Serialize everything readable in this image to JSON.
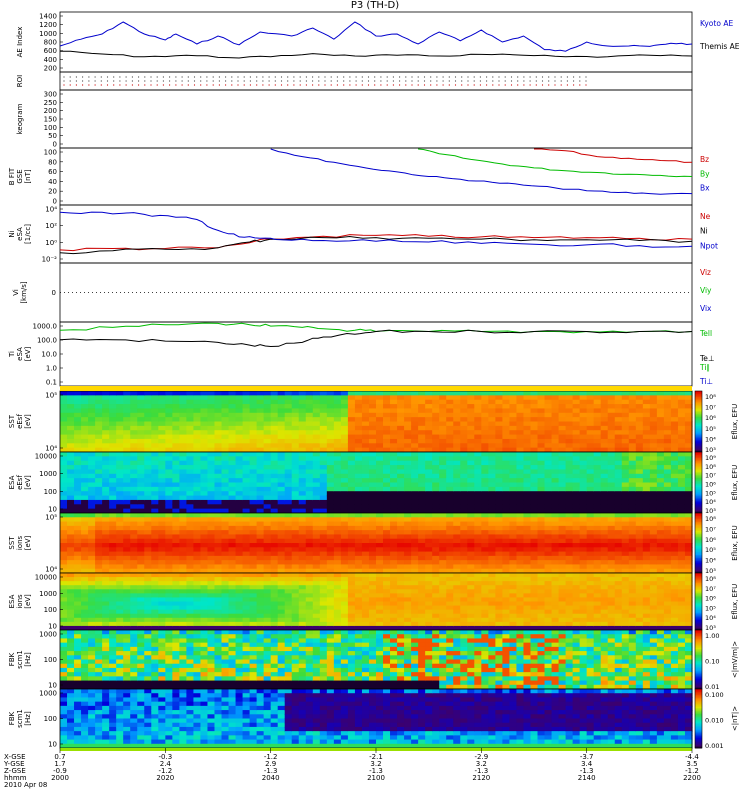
{
  "title": "P3 (TH-D)",
  "chart_data": {
    "panels": [
      {
        "id": "ae",
        "ylabel": [
          "AE Index"
        ],
        "type": "line",
        "ticks": [
          "1400",
          "1200",
          "1000",
          "800",
          "600",
          "400",
          "200"
        ],
        "series": [
          {
            "name": "Kyoto AE",
            "color": "#0000cc",
            "x": [
              0,
              4,
              8,
              12,
              16,
              20,
              22,
              26,
              30,
              34,
              38,
              44,
              48,
              52,
              56,
              60,
              64,
              68,
              72,
              76,
              80,
              84,
              88,
              92,
              96,
              100,
              104,
              108,
              112,
              116,
              120
            ],
            "values": [
              650,
              820,
              950,
              1250,
              950,
              800,
              950,
              700,
              900,
              680,
              1000,
              900,
              1100,
              820,
              1250,
              900,
              950,
              700,
              1000,
              780,
              1050,
              750,
              900,
              560,
              520,
              750,
              650,
              650,
              640,
              720,
              700
            ]
          },
          {
            "name": "Themis AE",
            "color": "#000000",
            "x": [
              0,
              8,
              16,
              24,
              32,
              40,
              48,
              56,
              64,
              72,
              80,
              88,
              96,
              104,
              112,
              120
            ],
            "values": [
              520,
              450,
              380,
              420,
              360,
              380,
              460,
              400,
              420,
              400,
              440,
              420,
              380,
              380,
              420,
              400
            ]
          }
        ],
        "ylim": [
          0,
          1500
        ]
      },
      {
        "id": "roi",
        "ylabel": [
          "ROI"
        ],
        "type": "dots",
        "ticks": []
      },
      {
        "id": "kp",
        "ylabel": [
          "keogram"
        ],
        "type": "empty",
        "ticks": [
          "300",
          "250",
          "200",
          "150",
          "100",
          "50",
          "0"
        ]
      },
      {
        "id": "bfit",
        "ylabel": [
          "B FIT",
          "GSE",
          "[nT]"
        ],
        "type": "line",
        "ticks": [
          "100",
          "80",
          "60",
          "40",
          "20",
          "0"
        ],
        "series": [
          {
            "name": "Bz",
            "color": "#cc0000",
            "x": [
              90,
              96,
              102,
              108,
              114,
              120
            ],
            "values": [
              100,
              95,
              85,
              82,
              78,
              75
            ]
          },
          {
            "name": "By",
            "color": "#00bb00",
            "x": [
              68,
              72,
              78,
              84,
              90,
              96,
              102,
              108,
              114,
              120
            ],
            "values": [
              100,
              90,
              80,
              72,
              65,
              60,
              57,
              54,
              52,
              50
            ]
          },
          {
            "name": "Bx",
            "color": "#0000cc",
            "x": [
              40,
              46,
              52,
              58,
              64,
              70,
              76,
              82,
              88,
              94,
              100,
              106,
              112,
              120
            ],
            "values": [
              100,
              85,
              75,
              65,
              58,
              50,
              45,
              40,
              35,
              30,
              25,
              22,
              20,
              20
            ]
          }
        ],
        "ylim": [
          0,
          100
        ]
      },
      {
        "id": "ni",
        "ylabel": [
          "Ni",
          "eSA",
          "[1/cc]"
        ],
        "type": "line",
        "ticks": [
          "10⁴",
          "10²",
          "10⁰",
          "10⁻²"
        ],
        "series": [
          {
            "name": "Ne",
            "color": "#cc0000",
            "x": [
              0,
              10,
              20,
              30,
              36,
              40,
              50,
              60,
              70,
              80,
              90,
              100,
              110,
              120
            ],
            "values": [
              -1.2,
              -1.0,
              -1.0,
              -0.9,
              -0.2,
              0.3,
              0.7,
              0.8,
              0.7,
              0.6,
              0.5,
              0.5,
              0.4,
              0.3
            ]
          },
          {
            "name": "Ni",
            "color": "#000000",
            "x": [
              0,
              10,
              20,
              30,
              36,
              40,
              50,
              60,
              70,
              80,
              90,
              100,
              110,
              120
            ],
            "values": [
              -1.6,
              -1.3,
              -1.1,
              -0.9,
              -0.1,
              0.3,
              0.5,
              0.5,
              0.4,
              0.3,
              0.2,
              0.2,
              0.1,
              0.0
            ]
          },
          {
            "name": "Npot",
            "color": "#0000cc",
            "x": [
              0,
              8,
              16,
              22,
              26,
              30,
              34,
              38,
              42,
              50,
              60,
              70,
              80,
              90,
              100,
              110,
              120
            ],
            "values": [
              4.0,
              4.0,
              3.7,
              3.3,
              3.0,
              1.5,
              0.6,
              0.4,
              0.2,
              0.1,
              0.0,
              -0.1,
              -0.3,
              -0.4,
              -0.5,
              -0.6,
              -0.7
            ]
          }
        ],
        "ylim": [
          -3,
          5
        ]
      },
      {
        "id": "vi",
        "ylabel": [
          "Vi",
          "[km/s]"
        ],
        "type": "empty",
        "ticks": [],
        "legend": [
          "Viz",
          "Viy",
          "Vix"
        ]
      },
      {
        "id": "ti",
        "ylabel": [
          "Ti",
          "eSA",
          "[eV]"
        ],
        "type": "line",
        "ticks": [
          "1000.0",
          "100.0",
          "10.0",
          "1.0",
          "0.1"
        ],
        "series": [
          {
            "name": "Tell",
            "color": "#00bb00",
            "x": [
              0,
              10,
              20,
              30,
              36,
              40,
              46,
              50,
              56,
              60,
              70,
              80,
              90,
              100,
              110,
              120
            ],
            "values": [
              3.1,
              3.3,
              3.5,
              3.6,
              3.5,
              3.4,
              3.3,
              3.2,
              3.1,
              3.0,
              3.0,
              3.0,
              3.0,
              3.0,
              3.0,
              3.0
            ]
          },
          {
            "name": "Te⊥",
            "color": "#000000",
            "x": [
              0,
              10,
              20,
              30,
              36,
              40,
              46,
              50,
              56,
              60,
              70,
              80,
              90,
              100,
              110,
              120
            ],
            "values": [
              2.4,
              2.4,
              2.3,
              2.2,
              2.0,
              1.9,
              2.2,
              2.6,
              2.8,
              3.0,
              3.0,
              3.0,
              3.0,
              3.0,
              3.0,
              3.0
            ]
          }
        ],
        "legend": [
          "Tell",
          "Te⊥",
          "Ti∥",
          "Ti⊥"
        ],
        "ylim": [
          -1,
          3.7
        ]
      },
      {
        "id": "sst_e",
        "ylabel": [
          "SST",
          "eEsf",
          "[eV]"
        ],
        "type": "spectro",
        "ticks": [
          "10⁵",
          "10⁴"
        ],
        "cbar": "Eflux, EFU",
        "cbarTicks": [
          "10⁸",
          "10⁷",
          "10⁶",
          "10⁵",
          "10⁴",
          "10³"
        ]
      },
      {
        "id": "esa_e",
        "ylabel": [
          "ESA",
          "eEsf",
          "[eV]"
        ],
        "type": "spectro",
        "ticks": [
          "10000",
          "1000",
          "100",
          "10"
        ],
        "cbar": "Eflux, EFU",
        "cbarTicks": [
          "10⁹",
          "10⁸",
          "10⁷",
          "10⁶",
          "10⁵",
          "10⁴",
          "10³"
        ]
      },
      {
        "id": "sst_i",
        "ylabel": [
          "SST",
          "ions",
          "[eV]"
        ],
        "type": "spectro",
        "ticks": [
          "10⁵",
          "10⁴"
        ],
        "cbar": "Eflux, EFU",
        "cbarTicks": [
          "10⁸",
          "10⁷",
          "10⁶",
          "10⁵",
          "10⁴",
          "10³"
        ]
      },
      {
        "id": "esa_i",
        "ylabel": [
          "ESA",
          "ions",
          "[eV]"
        ],
        "type": "spectro",
        "ticks": [
          "10000",
          "1000",
          "100",
          "10"
        ],
        "cbar": "Eflux, EFU",
        "cbarTicks": [
          "10⁸",
          "10⁷",
          "10⁶",
          "10⁵",
          "10⁴",
          "10³"
        ]
      },
      {
        "id": "fbk_b",
        "ylabel": [
          "FBK",
          "scm1",
          "[Hz]"
        ],
        "type": "spectro",
        "ticks": [
          "1000",
          "100",
          "10"
        ],
        "cbar": "<|mV/m|>",
        "cbarTicks": [
          "1.00",
          "0.10",
          "0.01"
        ]
      },
      {
        "id": "fbk_e",
        "ylabel": [
          "FBK",
          "scm1",
          "[Hz]"
        ],
        "type": "spectro",
        "ticks": [
          "1000",
          "100",
          "10"
        ],
        "cbar": "<|nT|>",
        "cbarTicks": [
          "0.100",
          "0.010",
          "0.001"
        ]
      }
    ],
    "xaxis": {
      "row_labels": [
        "X-GSE",
        "Y-GSE",
        "Z-GSE",
        "hhmm",
        "2010 Apr 08"
      ],
      "columns": [
        {
          "x": 0,
          "vals": [
            "0.7",
            "1.7",
            "-0.9",
            "2000"
          ]
        },
        {
          "x": 20,
          "vals": [
            "-0.3",
            "2.4",
            "-1.2",
            "2020"
          ]
        },
        {
          "x": 40,
          "vals": [
            "-1.2",
            "2.9",
            "-1.3",
            "2040"
          ]
        },
        {
          "x": 60,
          "vals": [
            "-2.1",
            "3.2",
            "-1.3",
            "2100"
          ]
        },
        {
          "x": 80,
          "vals": [
            "-2.9",
            "3.2",
            "-1.3",
            "2120"
          ]
        },
        {
          "x": 100,
          "vals": [
            "-3.7",
            "3.4",
            "-1.3",
            "2140"
          ]
        },
        {
          "x": 120,
          "vals": [
            "-4.4",
            "3.5",
            "-1.2",
            "2200"
          ]
        }
      ]
    }
  }
}
